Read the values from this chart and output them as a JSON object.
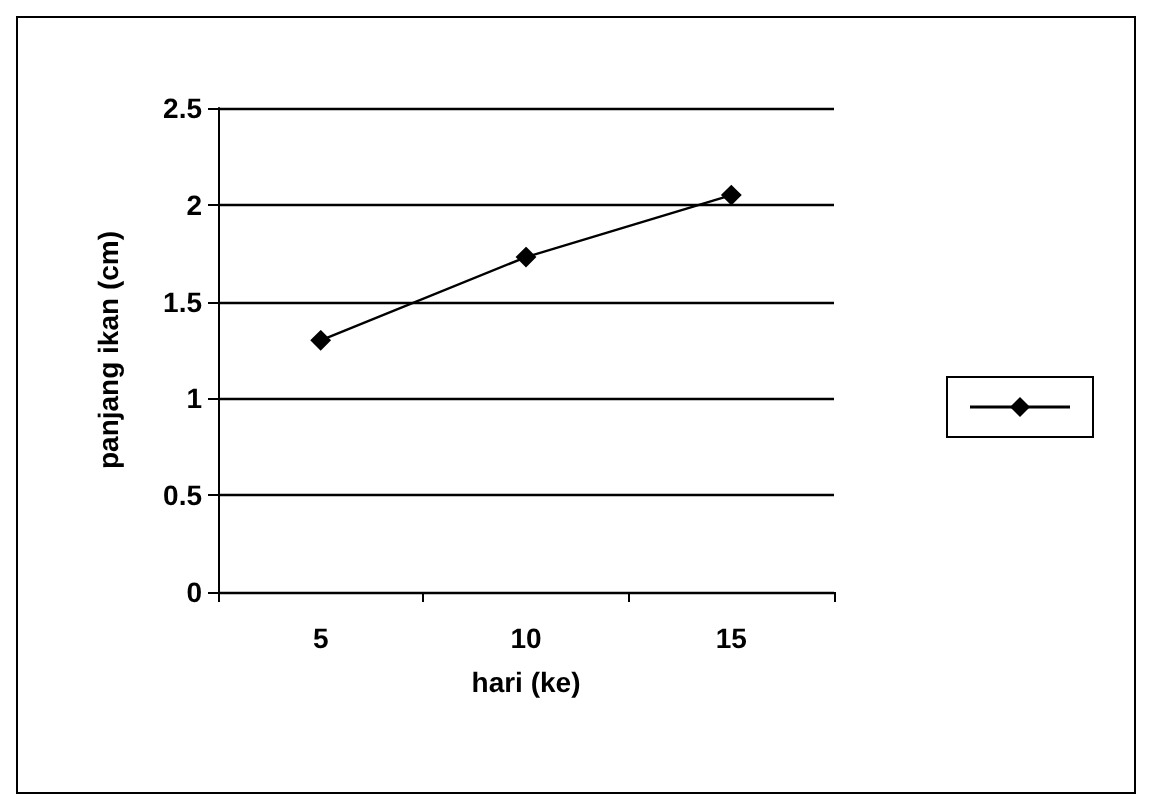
{
  "chart_data": {
    "type": "line",
    "xlabel": "hari (ke)",
    "ylabel": "panjang ikan (cm)",
    "categories": [
      "5",
      "10",
      "15"
    ],
    "series": [
      {
        "color": "#000000",
        "values": [
          1.3,
          1.73,
          2.05
        ]
      }
    ],
    "ylim": [
      0,
      2.5
    ],
    "yticks": [
      0,
      0.5,
      1,
      1.5,
      2,
      2.5
    ],
    "grid": "y",
    "marker": "diamond",
    "line_style": "solid"
  }
}
